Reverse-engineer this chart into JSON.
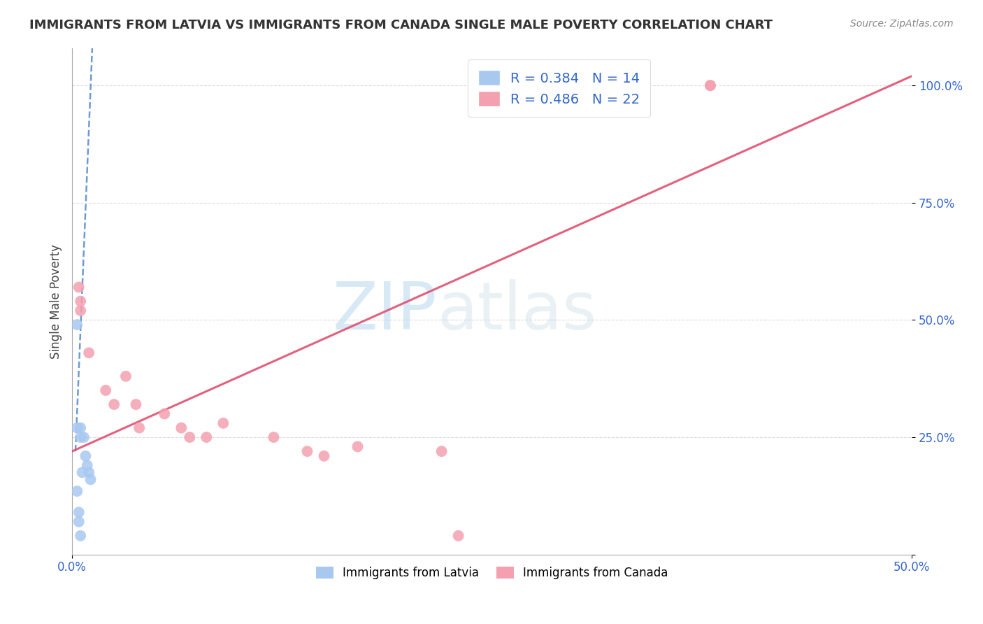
{
  "title": "IMMIGRANTS FROM LATVIA VS IMMIGRANTS FROM CANADA SINGLE MALE POVERTY CORRELATION CHART",
  "source": "Source: ZipAtlas.com",
  "ylabel": "Single Male Poverty",
  "xlim": [
    0.0,
    0.5
  ],
  "ylim": [
    0.0,
    1.08
  ],
  "legend_label1": "R = 0.384   N = 14",
  "legend_label2": "R = 0.486   N = 22",
  "legend_bottom_label1": "Immigrants from Latvia",
  "legend_bottom_label2": "Immigrants from Canada",
  "latvia_color": "#a8c8f0",
  "canada_color": "#f4a0b0",
  "latvia_line_color": "#5588cc",
  "canada_line_color": "#e05070",
  "latvia_scatter_x": [
    0.003,
    0.003,
    0.005,
    0.005,
    0.006,
    0.007,
    0.008,
    0.009,
    0.01,
    0.011,
    0.003,
    0.004,
    0.004,
    0.005
  ],
  "latvia_scatter_y": [
    0.49,
    0.27,
    0.27,
    0.25,
    0.175,
    0.25,
    0.21,
    0.19,
    0.175,
    0.16,
    0.135,
    0.09,
    0.07,
    0.04
  ],
  "canada_scatter_x": [
    0.004,
    0.005,
    0.005,
    0.01,
    0.02,
    0.025,
    0.032,
    0.038,
    0.04,
    0.055,
    0.065,
    0.07,
    0.08,
    0.09,
    0.12,
    0.14,
    0.15,
    0.17,
    0.22,
    0.23,
    0.38,
    0.38
  ],
  "canada_scatter_y": [
    0.57,
    0.54,
    0.52,
    0.43,
    0.35,
    0.32,
    0.38,
    0.32,
    0.27,
    0.3,
    0.27,
    0.25,
    0.25,
    0.28,
    0.25,
    0.22,
    0.21,
    0.23,
    0.22,
    0.04,
    1.0,
    1.0
  ],
  "latvia_line_x": [
    0.002,
    0.012
  ],
  "latvia_line_y": [
    0.22,
    1.08
  ],
  "canada_line_x": [
    0.0,
    0.5
  ],
  "canada_line_y": [
    0.22,
    1.02
  ],
  "ytick_vals": [
    0.0,
    0.25,
    0.5,
    0.75,
    1.0
  ],
  "ytick_labels": [
    "0.0%",
    "25.0%",
    "50.0%",
    "75.0%",
    "100.0%"
  ],
  "xtick_vals": [
    0.0,
    0.5
  ],
  "xtick_labels": [
    "0.0%",
    "50.0%"
  ],
  "title_fontsize": 13,
  "tick_fontsize": 12,
  "tick_color": "#3366cc",
  "grid_color": "#cccccc",
  "spine_color": "#aaaaaa"
}
